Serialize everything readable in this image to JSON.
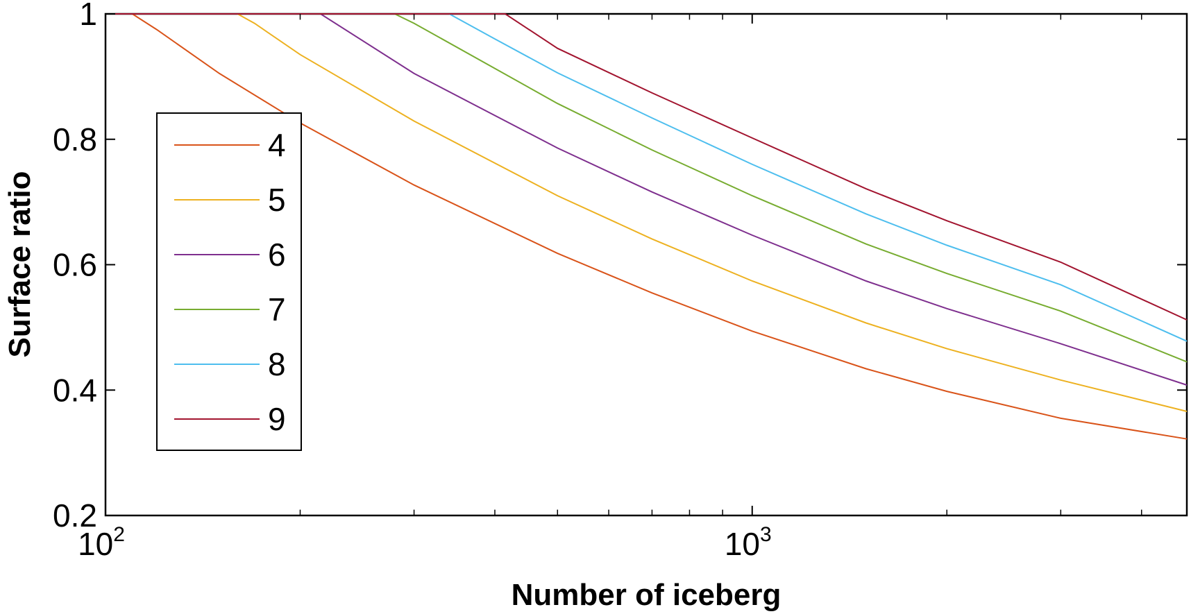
{
  "chart_data": {
    "type": "line",
    "title": "",
    "xlabel": "Number of iceberg",
    "ylabel": "Surface ratio",
    "x_scale": "log",
    "xlim": [
      100,
      4700
    ],
    "ylim": [
      0.2,
      1
    ],
    "grid": false,
    "legend_position": "left",
    "x_ticks": [
      {
        "value": 100,
        "base": "10",
        "exp": "2"
      },
      {
        "value": 1000,
        "base": "10",
        "exp": "3"
      }
    ],
    "y_ticks": [
      {
        "value": 0.2,
        "label": "0.2"
      },
      {
        "value": 0.4,
        "label": "0.4"
      },
      {
        "value": 0.6,
        "label": "0.6"
      },
      {
        "value": 0.8,
        "label": "0.8"
      },
      {
        "value": 1,
        "label": "1"
      }
    ],
    "series": [
      {
        "name": "4",
        "color": "#D95319",
        "x": [
          100,
          110,
          120,
          150,
          200,
          300,
          500,
          700,
          1000,
          1500,
          2000,
          3000,
          4700
        ],
        "y": [
          1,
          1,
          0.975,
          0.905,
          0.826,
          0.727,
          0.618,
          0.555,
          0.494,
          0.434,
          0.398,
          0.355,
          0.322
        ]
      },
      {
        "name": "5",
        "color": "#EDB120",
        "x": [
          100,
          160,
          170,
          200,
          300,
          500,
          700,
          1000,
          1500,
          2000,
          3000,
          4700
        ],
        "y": [
          1,
          1,
          0.985,
          0.935,
          0.829,
          0.71,
          0.641,
          0.574,
          0.507,
          0.466,
          0.416,
          0.366
        ]
      },
      {
        "name": "6",
        "color": "#7E2F8E",
        "x": [
          100,
          215,
          300,
          500,
          700,
          1000,
          1500,
          2000,
          3000,
          4700
        ],
        "y": [
          1,
          1,
          0.905,
          0.786,
          0.716,
          0.647,
          0.574,
          0.53,
          0.474,
          0.408
        ]
      },
      {
        "name": "7",
        "color": "#77AC30",
        "x": [
          100,
          280,
          300,
          500,
          700,
          1000,
          1500,
          2000,
          3000,
          4700
        ],
        "y": [
          1,
          1,
          0.985,
          0.857,
          0.783,
          0.71,
          0.633,
          0.586,
          0.526,
          0.445
        ]
      },
      {
        "name": "8",
        "color": "#4DBEEE",
        "x": [
          100,
          340,
          400,
          500,
          700,
          1000,
          1500,
          2000,
          3000,
          4700
        ],
        "y": [
          1,
          1,
          0.96,
          0.906,
          0.834,
          0.76,
          0.681,
          0.631,
          0.568,
          0.478
        ]
      },
      {
        "name": "9",
        "color": "#A2142F",
        "x": [
          100,
          415,
          500,
          700,
          1000,
          1500,
          2000,
          3000,
          4700
        ],
        "y": [
          1,
          1,
          0.945,
          0.874,
          0.802,
          0.721,
          0.67,
          0.604,
          0.512
        ]
      }
    ]
  }
}
